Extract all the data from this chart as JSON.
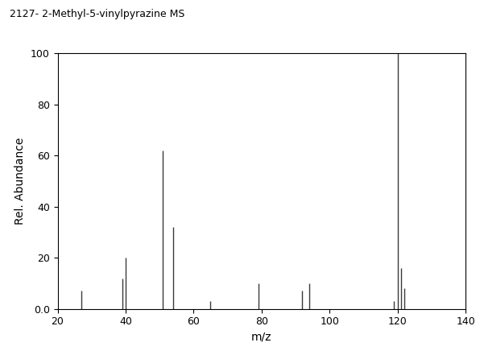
{
  "title": "2127- 2-Methyl-5-vinylpyrazine MS",
  "xlabel": "m/z",
  "ylabel": "Rel. Abundance",
  "xlim": [
    20,
    140
  ],
  "ylim": [
    0,
    100
  ],
  "xticks": [
    20,
    40,
    60,
    80,
    100,
    120,
    140
  ],
  "yticks": [
    0,
    20,
    40,
    60,
    80,
    100
  ],
  "peaks": [
    [
      27,
      7
    ],
    [
      39,
      12
    ],
    [
      40,
      20
    ],
    [
      51,
      62
    ],
    [
      54,
      32
    ],
    [
      65,
      3
    ],
    [
      79,
      10
    ],
    [
      92,
      7
    ],
    [
      94,
      10
    ],
    [
      119,
      3
    ],
    [
      120,
      100
    ],
    [
      121,
      16
    ],
    [
      122,
      8
    ]
  ],
  "line_color": "#3a3a3a",
  "background_color": "#ffffff",
  "title_fontsize": 9,
  "label_fontsize": 10,
  "tick_fontsize": 9
}
